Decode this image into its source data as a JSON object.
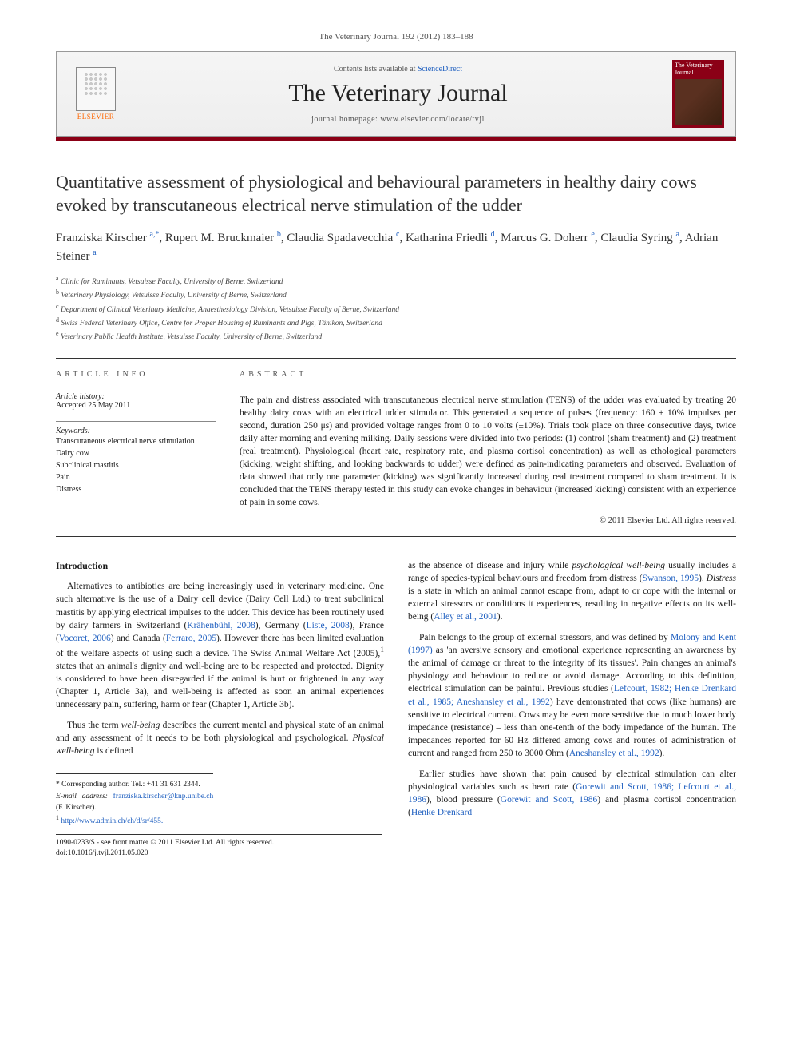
{
  "journal_ref": "The Veterinary Journal 192 (2012) 183–188",
  "header": {
    "contents_text": "Contents lists available at ",
    "contents_link": "ScienceDirect",
    "journal_title": "The Veterinary Journal",
    "homepage_label": "journal homepage: ",
    "homepage_url": "www.elsevier.com/locate/tvjl",
    "publisher": "ELSEVIER",
    "cover_title": "The Veterinary Journal"
  },
  "title": "Quantitative assessment of physiological and behavioural parameters in healthy dairy cows evoked by transcutaneous electrical nerve stimulation of the udder",
  "authors": [
    {
      "name": "Franziska Kirscher",
      "sup": "a,*"
    },
    {
      "name": "Rupert M. Bruckmaier",
      "sup": "b"
    },
    {
      "name": "Claudia Spadavecchia",
      "sup": "c"
    },
    {
      "name": "Katharina Friedli",
      "sup": "d"
    },
    {
      "name": "Marcus G. Doherr",
      "sup": "e"
    },
    {
      "name": "Claudia Syring",
      "sup": "a"
    },
    {
      "name": "Adrian Steiner",
      "sup": "a"
    }
  ],
  "affiliations": [
    {
      "sup": "a",
      "text": "Clinic for Ruminants, Vetsuisse Faculty, University of Berne, Switzerland"
    },
    {
      "sup": "b",
      "text": "Veterinary Physiology, Vetsuisse Faculty, University of Berne, Switzerland"
    },
    {
      "sup": "c",
      "text": "Department of Clinical Veterinary Medicine, Anaesthesiology Division, Vetsuisse Faculty of Berne, Switzerland"
    },
    {
      "sup": "d",
      "text": "Swiss Federal Veterinary Office, Centre for Proper Housing of Ruminants and Pigs, Tänikon, Switzerland"
    },
    {
      "sup": "e",
      "text": "Veterinary Public Health Institute, Vetsuisse Faculty, University of Berne, Switzerland"
    }
  ],
  "article_info": {
    "heading": "article info",
    "history_label": "Article history:",
    "accepted": "Accepted 25 May 2011",
    "keywords_label": "Keywords:",
    "keywords": [
      "Transcutaneous electrical nerve stimulation",
      "Dairy cow",
      "Subclinical mastitis",
      "Pain",
      "Distress"
    ]
  },
  "abstract": {
    "heading": "abstract",
    "text": "The pain and distress associated with transcutaneous electrical nerve stimulation (TENS) of the udder was evaluated by treating 20 healthy dairy cows with an electrical udder stimulator. This generated a sequence of pulses (frequency: 160 ± 10% impulses per second, duration 250 μs) and provided voltage ranges from 0 to 10 volts (±10%). Trials took place on three consecutive days, twice daily after morning and evening milking. Daily sessions were divided into two periods: (1) control (sham treatment) and (2) treatment (real treatment). Physiological (heart rate, respiratory rate, and plasma cortisol concentration) as well as ethological parameters (kicking, weight shifting, and looking backwards to udder) were defined as pain-indicating parameters and observed. Evaluation of data showed that only one parameter (kicking) was significantly increased during real treatment compared to sham treatment. It is concluded that the TENS therapy tested in this study can evoke changes in behaviour (increased kicking) consistent with an experience of pain in some cows.",
    "copyright": "© 2011 Elsevier Ltd. All rights reserved."
  },
  "body": {
    "section": "Introduction",
    "col1": {
      "p1_a": "Alternatives to antibiotics are being increasingly used in veterinary medicine. One such alternative is the use of a Dairy cell device (Dairy Cell Ltd.) to treat subclinical mastitis by applying electrical impulses to the udder. This device has been routinely used by dairy farmers in Switzerland (",
      "p1_l1": "Krähenbühl, 2008",
      "p1_b": "), Germany (",
      "p1_l2": "Liste, 2008",
      "p1_c": "), France (",
      "p1_l3": "Vocoret, 2006",
      "p1_d": ") and Canada (",
      "p1_l4": "Ferraro, 2005",
      "p1_e": "). However there has been limited evaluation of the welfare aspects of using such a device. The Swiss Animal Welfare Act (2005),",
      "p1_sup": "1",
      "p1_f": " states that an animal's dignity and well-being are to be respected and protected. Dignity is considered to have been disregarded if the animal is hurt or frightened in any way (Chapter 1, Article 3a), and well-being is affected as soon an animal experiences unnecessary pain, suffering, harm or fear (Chapter 1, Article 3b).",
      "p2_a": "Thus the term ",
      "p2_i1": "well-being",
      "p2_b": " describes the current mental and physical state of an animal and any assessment of it needs to be both physiological and psychological. ",
      "p2_i2": "Physical well-being",
      "p2_c": " is defined"
    },
    "col2": {
      "p1_a": "as the absence of disease and injury while ",
      "p1_i1": "psychological well-being",
      "p1_b": " usually includes a range of species-typical behaviours and freedom from distress (",
      "p1_l1": "Swanson, 1995",
      "p1_c": "). ",
      "p1_i2": "Distress",
      "p1_d": " is a state in which an animal cannot escape from, adapt to or cope with the internal or external stressors or conditions it experiences, resulting in negative effects on its well-being (",
      "p1_l2": "Alley et al., 2001",
      "p1_e": ").",
      "p2_a": "Pain belongs to the group of external stressors, and was defined by ",
      "p2_l1": "Molony and Kent (1997)",
      "p2_b": " as 'an aversive sensory and emotional experience representing an awareness by the animal of damage or threat to the integrity of its tissues'. Pain changes an animal's physiology and behaviour to reduce or avoid damage. According to this definition, electrical stimulation can be painful. Previous studies (",
      "p2_l2": "Lefcourt, 1982; Henke Drenkard et al., 1985; Aneshansley et al., 1992",
      "p2_c": ") have demonstrated that cows (like humans) are sensitive to electrical current. Cows may be even more sensitive due to much lower body impedance (resistance) – less than one-tenth of the body impedance of the human. The impedances reported for 60 Hz differed among cows and routes of administration of current and ranged from 250 to 3000 Ohm (",
      "p2_l3": "Aneshansley et al., 1992",
      "p2_d": ").",
      "p3_a": "Earlier studies have shown that pain caused by electrical stimulation can alter physiological variables such as heart rate (",
      "p3_l1": "Gorewit and Scott, 1986; Lefcourt et al., 1986",
      "p3_b": "), blood pressure (",
      "p3_l2": "Gorewit and Scott, 1986",
      "p3_c": ") and plasma cortisol concentration (",
      "p3_l3": "Henke Drenkard"
    }
  },
  "footnotes": {
    "corr_label": "* Corresponding author. Tel.: +41 31 631 2344.",
    "email_label": "E-mail address: ",
    "email": "franziska.kirscher@knp.unibe.ch",
    "email_name": " (F. Kirscher).",
    "fn1_sup": "1",
    "fn1_link": "http://www.admin.ch/ch/d/sr/455."
  },
  "bottom": {
    "issn": "1090-0233/$ - see front matter © 2011 Elsevier Ltd. All rights reserved.",
    "doi": "doi:10.1016/j.tvjl.2011.05.020"
  },
  "colors": {
    "link": "#2060c0",
    "publisher": "#ff6600",
    "red_bar": "#8b0016",
    "text": "#1a1a1a",
    "gray": "#555555",
    "border": "#333333"
  }
}
